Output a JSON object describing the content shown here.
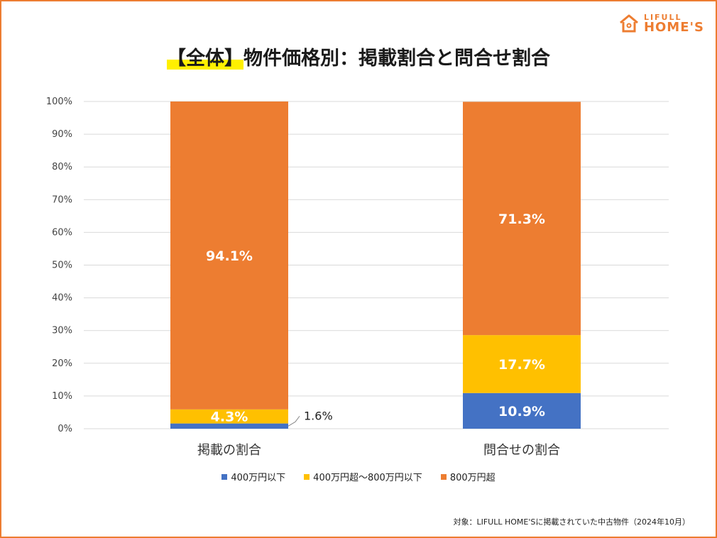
{
  "logo": {
    "top": "LIFULL",
    "bottom": "HOME'S"
  },
  "title": {
    "highlight": "【全体】",
    "rest": "物件価格別：掲載割合と問合せ割合"
  },
  "footnote": "対象：LIFULL HOME'Sに掲載されていた中古物件（2024年10月）",
  "colors": {
    "frame": "#ED7D31",
    "low": "#4472C4",
    "mid": "#FFC000",
    "high": "#ED7D31",
    "grid": "#D9D9D9"
  },
  "chart_data": {
    "type": "bar",
    "stacked": true,
    "categories": [
      "掲載の割合",
      "問合せの割合"
    ],
    "series": [
      {
        "name": "400万円以下",
        "values": [
          1.6,
          10.9
        ],
        "labels": [
          "1.6%",
          "10.9%"
        ],
        "color": "#4472C4"
      },
      {
        "name": "400万円超～800万円以下",
        "values": [
          4.3,
          17.7
        ],
        "labels": [
          "4.3%",
          "17.7%"
        ],
        "color": "#FFC000"
      },
      {
        "name": "800万円超",
        "values": [
          94.1,
          71.3
        ],
        "labels": [
          "94.1%",
          "71.3%"
        ],
        "color": "#ED7D31"
      }
    ],
    "yticks": [
      "0%",
      "10%",
      "20%",
      "30%",
      "40%",
      "50%",
      "60%",
      "70%",
      "80%",
      "90%",
      "100%"
    ],
    "ylim": [
      0,
      100
    ],
    "grid": true,
    "legend": "bottom"
  }
}
